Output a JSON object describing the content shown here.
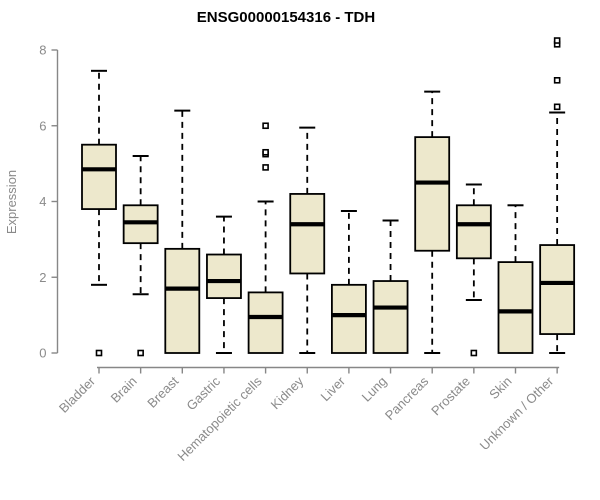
{
  "chart_data": {
    "type": "boxplot",
    "title": "ENSG00000154316 - TDH",
    "gene_id": "ENSG00000154316",
    "gene_symbol": "TDH",
    "xlabel": "",
    "ylabel": "Expression",
    "ylim": [
      0,
      8
    ],
    "yticks": [
      0,
      2,
      4,
      6,
      8
    ],
    "grid": false,
    "legend": false,
    "categories": [
      "Bladder",
      "Brain",
      "Breast",
      "Gastric",
      "Hematopoietic cells",
      "Kidney",
      "Liver",
      "Lung",
      "Pancreas",
      "Prostate",
      "Skin",
      "Unknown / Other"
    ],
    "series": [
      {
        "category": "Bladder",
        "whisker_low": 1.8,
        "q1": 3.8,
        "median": 4.85,
        "q3": 5.5,
        "whisker_high": 7.45,
        "outliers": [
          0
        ]
      },
      {
        "category": "Brain",
        "whisker_low": 1.55,
        "q1": 2.9,
        "median": 3.45,
        "q3": 3.9,
        "whisker_high": 5.2,
        "outliers": [
          0
        ]
      },
      {
        "category": "Breast",
        "whisker_low": 0,
        "q1": 0,
        "median": 1.7,
        "q3": 2.75,
        "whisker_high": 6.4,
        "outliers": []
      },
      {
        "category": "Gastric",
        "whisker_low": 0,
        "q1": 1.45,
        "median": 1.9,
        "q3": 2.6,
        "whisker_high": 3.6,
        "outliers": []
      },
      {
        "category": "Hematopoietic cells",
        "whisker_low": 0,
        "q1": 0,
        "median": 0.95,
        "q3": 1.6,
        "whisker_high": 4.0,
        "outliers": [
          4.9,
          5.25,
          5.3,
          6.0
        ]
      },
      {
        "category": "Kidney",
        "whisker_low": 0,
        "q1": 2.1,
        "median": 3.4,
        "q3": 4.2,
        "whisker_high": 5.95,
        "outliers": []
      },
      {
        "category": "Liver",
        "whisker_low": 0,
        "q1": 0,
        "median": 1.0,
        "q3": 1.8,
        "whisker_high": 3.75,
        "outliers": []
      },
      {
        "category": "Lung",
        "whisker_low": 0,
        "q1": 0,
        "median": 1.2,
        "q3": 1.9,
        "whisker_high": 3.5,
        "outliers": []
      },
      {
        "category": "Pancreas",
        "whisker_low": 0,
        "q1": 2.7,
        "median": 4.5,
        "q3": 5.7,
        "whisker_high": 6.9,
        "outliers": []
      },
      {
        "category": "Prostate",
        "whisker_low": 1.4,
        "q1": 2.5,
        "median": 3.4,
        "q3": 3.9,
        "whisker_high": 4.45,
        "outliers": [
          0
        ]
      },
      {
        "category": "Skin",
        "whisker_low": 0,
        "q1": 0,
        "median": 1.1,
        "q3": 2.4,
        "whisker_high": 3.9,
        "outliers": []
      },
      {
        "category": "Unknown / Other",
        "whisker_low": 0,
        "q1": 0.5,
        "median": 1.85,
        "q3": 2.85,
        "whisker_high": 6.35,
        "outliers": [
          6.5,
          7.2,
          8.15,
          8.25
        ]
      }
    ],
    "colors": {
      "box_fill": "#EDE8CC",
      "box_border": "#000000",
      "median": "#000000",
      "whisker": "#000000",
      "outlier_border": "#000000",
      "outlier_fill": "#FFFFFF",
      "axis": "#878787",
      "tick_label": "#8A8A8A",
      "title": "#000000",
      "background": "#FFFFFF"
    }
  }
}
